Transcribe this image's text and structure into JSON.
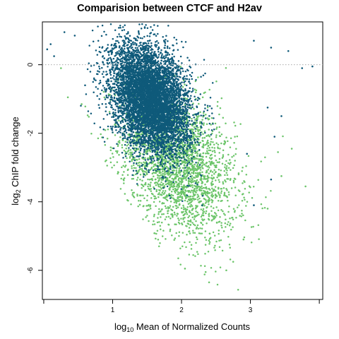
{
  "chart_data": {
    "type": "scatter",
    "title": "Comparision between CTCF and H2av",
    "xlabel_prefix": "log",
    "xlabel_sub": "10",
    "xlabel_rest": " Mean of Normalized Counts",
    "ylabel_prefix": "log",
    "ylabel_sub": "2",
    "ylabel_rest": " ChIP fold change",
    "x_ticks": [
      1,
      2,
      3
    ],
    "x_tick_labels": [
      "1",
      "2",
      "3"
    ],
    "x_minor_ticks": [
      0,
      4
    ],
    "y_ticks": [
      0,
      -2,
      -4,
      -6
    ],
    "y_tick_labels": [
      "0",
      "-2",
      "-4",
      "-6"
    ],
    "xlim": [
      -0.02,
      4.05
    ],
    "ylim": [
      -6.85,
      1.25
    ],
    "reference_line": {
      "y": 0,
      "style": "dotted",
      "color": "#aaaaaa"
    },
    "grid": false,
    "series": [
      {
        "color": "#6cc56a",
        "point_count": 2600,
        "density_center": [
          1.95,
          -2.9
        ],
        "density_spread": [
          0.42,
          1.0
        ],
        "outliers": [
          {
            "x": 2.4,
            "y": -6.35
          },
          {
            "x": 2.05,
            "y": -5.95
          },
          {
            "x": 2.75,
            "y": -5.75
          },
          {
            "x": 2.35,
            "y": -6.05
          },
          {
            "x": 3.8,
            "y": -3.55
          },
          {
            "x": 3.6,
            "y": -2.45
          },
          {
            "x": 3.4,
            "y": -2.55
          },
          {
            "x": 3.25,
            "y": -4.2
          },
          {
            "x": 3.45,
            "y": -3.25
          },
          {
            "x": 2.9,
            "y": -5.1
          },
          {
            "x": 2.65,
            "y": -6.0
          },
          {
            "x": 0.35,
            "y": -0.95
          },
          {
            "x": 0.55,
            "y": -1.15
          },
          {
            "x": 0.25,
            "y": -0.1
          }
        ]
      },
      {
        "color": "#0f5a7a",
        "point_count": 6500,
        "density_center": [
          1.55,
          -1.0
        ],
        "density_spread": [
          0.28,
          0.75
        ],
        "outliers": [
          {
            "x": 0.05,
            "y": 0.45
          },
          {
            "x": 0.1,
            "y": 0.6
          },
          {
            "x": 0.3,
            "y": 0.95
          },
          {
            "x": 0.45,
            "y": 0.85
          },
          {
            "x": 0.15,
            "y": 0.25
          },
          {
            "x": 3.3,
            "y": 0.5
          },
          {
            "x": 3.55,
            "y": 0.4
          },
          {
            "x": 3.9,
            "y": -0.05
          },
          {
            "x": 3.75,
            "y": -0.1
          },
          {
            "x": 3.45,
            "y": -1.5
          },
          {
            "x": 3.3,
            "y": -3.35
          },
          {
            "x": 3.05,
            "y": -4.1
          },
          {
            "x": 3.25,
            "y": -1.25
          },
          {
            "x": 2.3,
            "y": -4.1
          },
          {
            "x": 3.05,
            "y": 0.7
          },
          {
            "x": 0.6,
            "y": -0.6
          },
          {
            "x": 3.35,
            "y": -2.1
          },
          {
            "x": 2.95,
            "y": -2.6
          }
        ]
      }
    ]
  }
}
